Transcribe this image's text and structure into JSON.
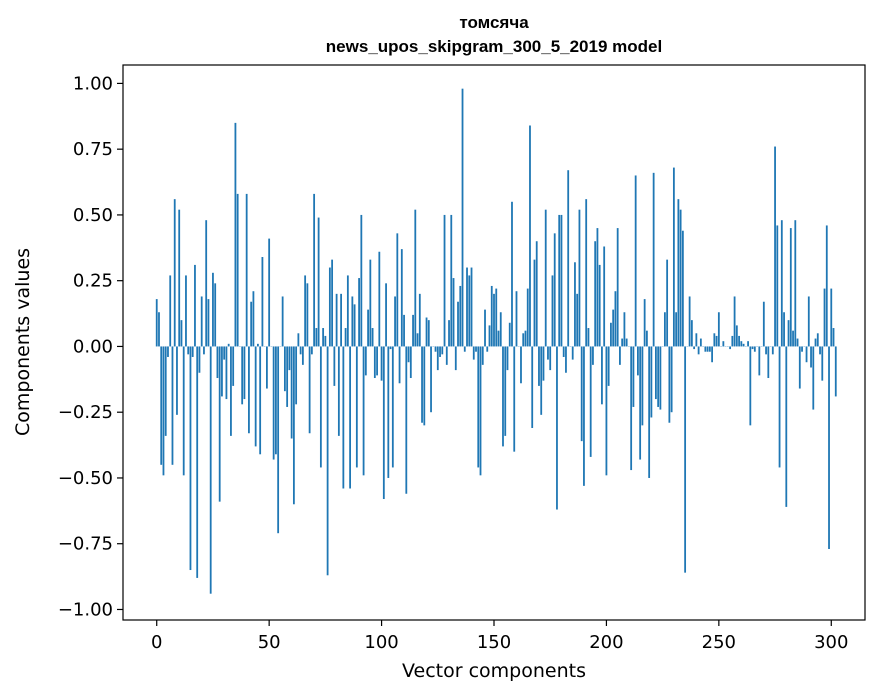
{
  "chart_data": {
    "type": "bar",
    "title_line1": "томсяча",
    "title_line2": "news_upos_skipgram_300_5_2019 model",
    "xlabel": "Vector components",
    "ylabel": "Components values",
    "xlim": [
      -15,
      315
    ],
    "ylim": [
      -1.04,
      1.07
    ],
    "x_ticks": [
      0,
      50,
      100,
      150,
      200,
      250,
      300
    ],
    "y_ticks": [
      1.0,
      0.75,
      0.5,
      0.25,
      0.0,
      -0.25,
      -0.5,
      -0.75,
      -1.0
    ],
    "x_tick_labels": [
      "0",
      "50",
      "100",
      "150",
      "200",
      "250",
      "300"
    ],
    "y_tick_labels": [
      "1.00",
      "0.75",
      "0.50",
      "0.25",
      "0.00",
      "−0.25",
      "−0.50",
      "−0.75",
      "−1.00"
    ],
    "bar_color": "#1f77b4",
    "values": [
      0.18,
      0.13,
      -0.45,
      -0.49,
      -0.34,
      -0.04,
      0.27,
      -0.45,
      0.56,
      -0.26,
      0.52,
      0.1,
      -0.49,
      0.27,
      -0.03,
      -0.85,
      -0.04,
      0.31,
      -0.88,
      -0.1,
      0.19,
      -0.03,
      0.48,
      0.18,
      -0.94,
      0.28,
      0.24,
      -0.12,
      -0.59,
      -0.19,
      -0.05,
      -0.2,
      0.01,
      -0.34,
      -0.15,
      0.85,
      0.58,
      0.0,
      -0.22,
      -0.2,
      0.58,
      -0.33,
      0.17,
      0.21,
      -0.38,
      0.01,
      -0.41,
      0.34,
      0.0,
      -0.16,
      0.41,
      0.0,
      -0.43,
      -0.41,
      -0.71,
      0.0,
      0.19,
      -0.17,
      -0.23,
      -0.09,
      -0.35,
      -0.6,
      -0.22,
      0.05,
      -0.03,
      -0.07,
      0.27,
      0.24,
      -0.33,
      -0.03,
      0.58,
      0.07,
      0.49,
      -0.46,
      0.07,
      0.04,
      -0.87,
      0.3,
      0.33,
      -0.15,
      0.2,
      -0.34,
      0.2,
      -0.54,
      0.07,
      0.27,
      -0.54,
      0.19,
      0.16,
      -0.46,
      0.26,
      0.5,
      -0.49,
      -0.11,
      0.14,
      0.33,
      0.07,
      -0.12,
      -0.11,
      0.36,
      -0.13,
      -0.58,
      0.24,
      -0.5,
      -0.01,
      -0.46,
      0.19,
      0.43,
      -0.14,
      0.37,
      0.12,
      -0.56,
      -0.06,
      -0.12,
      0.12,
      0.52,
      0.05,
      0.2,
      -0.29,
      -0.3,
      0.11,
      0.1,
      -0.25,
      0.0,
      -0.02,
      -0.09,
      -0.04,
      -0.03,
      0.5,
      -0.07,
      0.1,
      0.5,
      0.26,
      -0.09,
      0.17,
      0.23,
      0.98,
      -0.02,
      0.3,
      0.27,
      0.3,
      -0.05,
      -0.02,
      -0.46,
      -0.49,
      -0.07,
      0.14,
      -0.02,
      0.08,
      0.23,
      0.2,
      0.22,
      0.06,
      0.13,
      -0.38,
      -0.34,
      -0.09,
      0.09,
      0.55,
      -0.4,
      0.21,
      0.0,
      -0.14,
      0.05,
      0.06,
      0.22,
      0.84,
      -0.31,
      0.33,
      0.4,
      -0.15,
      -0.26,
      -0.13,
      0.52,
      -0.05,
      -0.09,
      0.27,
      0.43,
      -0.62,
      0.5,
      0.5,
      -0.04,
      -0.1,
      0.67,
      0.0,
      -0.05,
      0.32,
      0.2,
      0.52,
      -0.36,
      -0.53,
      0.56,
      0.07,
      -0.42,
      -0.07,
      0.4,
      0.45,
      0.31,
      -0.22,
      0.38,
      -0.49,
      -0.15,
      0.09,
      0.14,
      0.21,
      0.45,
      -0.07,
      0.03,
      0.13,
      0.03,
      0.0,
      -0.47,
      -0.23,
      0.65,
      -0.11,
      -0.43,
      -0.3,
      0.18,
      0.06,
      -0.5,
      -0.27,
      0.66,
      -0.2,
      -0.23,
      -0.24,
      0.0,
      0.13,
      0.33,
      -0.29,
      -0.25,
      0.68,
      0.13,
      0.56,
      0.52,
      0.44,
      -0.86,
      0.0,
      0.19,
      0.1,
      -0.01,
      0.05,
      -0.03,
      0.03,
      0.0,
      -0.02,
      -0.02,
      -0.02,
      -0.06,
      0.05,
      0.04,
      0.13,
      0.0,
      0.02,
      0.0,
      0.0,
      -0.01,
      0.04,
      0.19,
      0.08,
      0.04,
      0.02,
      0.01,
      0.0,
      0.02,
      -0.3,
      -0.01,
      -0.02,
      0.0,
      -0.11,
      0.0,
      0.17,
      -0.03,
      -0.12,
      0.0,
      -0.03,
      0.76,
      0.46,
      -0.46,
      0.48,
      0.13,
      -0.61,
      0.1,
      0.45,
      0.06,
      0.48,
      0.03,
      -0.16,
      -0.02,
      0.0,
      -0.06,
      0.19,
      -0.08,
      -0.24,
      0.03,
      0.05,
      -0.03,
      -0.13,
      0.22,
      0.46,
      -0.77,
      0.22,
      0.07,
      -0.19
    ]
  }
}
